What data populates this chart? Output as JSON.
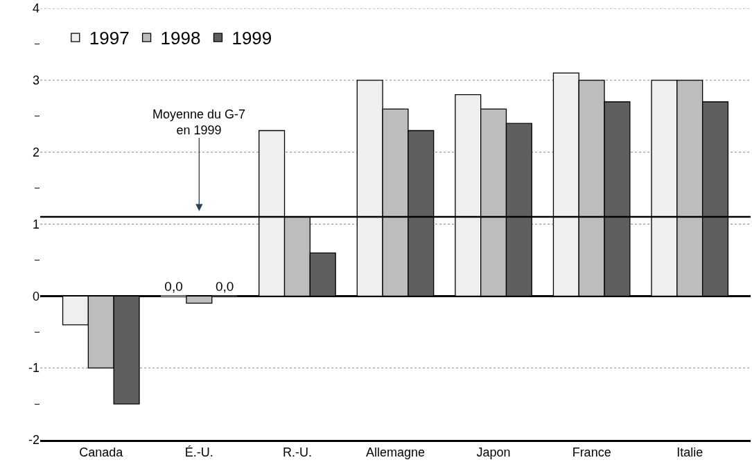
{
  "chart_data": {
    "type": "bar",
    "categories": [
      "Canada",
      "É.-U.",
      "R.-U.",
      "Allemagne",
      "Japon",
      "France",
      "Italie"
    ],
    "series": [
      {
        "name": "1997",
        "color": "#efefef",
        "values": [
          -0.4,
          0.0,
          2.3,
          3.0,
          2.8,
          3.1,
          3.0
        ],
        "value_labels": [
          null,
          "0,0",
          null,
          null,
          null,
          null,
          null
        ]
      },
      {
        "name": "1998",
        "color": "#bdbdbd",
        "values": [
          -1.0,
          -0.1,
          1.1,
          2.6,
          2.6,
          3.0,
          3.0
        ]
      },
      {
        "name": "1999",
        "color": "#5f5f5f",
        "values": [
          -1.5,
          0.0,
          0.6,
          2.3,
          2.4,
          2.7,
          2.7
        ],
        "value_labels": [
          null,
          "0,0",
          null,
          null,
          null,
          null,
          null
        ]
      }
    ],
    "ylim": [
      -2,
      4
    ],
    "yticks": [
      -2,
      {
        "value": -1.5,
        "label": null
      },
      -1,
      {
        "value": -0.5,
        "label": null
      },
      0,
      {
        "value": 0.5,
        "label": null
      },
      1,
      {
        "value": 1.5,
        "label": null
      },
      2,
      {
        "value": 2.5,
        "label": null
      },
      3,
      {
        "value": 3.5,
        "label": null
      },
      4
    ],
    "grid": "y",
    "legend": "top left",
    "ref_lines": [
      {
        "axis": "y",
        "value": 1.1,
        "label": "Moyenne du G-7\nen 1999",
        "color": "#000000",
        "line_style": "solid"
      }
    ]
  }
}
